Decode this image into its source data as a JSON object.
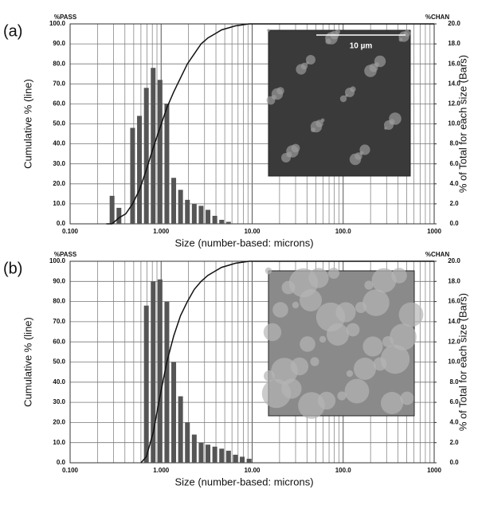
{
  "chart_data": [
    {
      "type": "combo",
      "label": "(a)",
      "ylabel_top": "%PASS",
      "y2label_top": "%CHAN",
      "ylabel": "Cumulative % (line)",
      "y2label": "% of Total for each size (Bars)",
      "xlabel": "Size (number-based: microns)",
      "inset_text": "10 µm",
      "log_x": true,
      "grid": true,
      "xlim": [
        0.1,
        1000
      ],
      "xticks": [
        {
          "value": 0.1,
          "label": "0.100"
        },
        {
          "value": 1,
          "label": "1.000"
        },
        {
          "value": 10,
          "label": "10.00"
        },
        {
          "value": 100,
          "label": "100.0"
        },
        1000
      ],
      "ylim": [
        0,
        100
      ],
      "yticks": [
        {
          "value": 0,
          "label": "0.0"
        },
        {
          "value": 10,
          "label": "10.0"
        },
        {
          "value": 20,
          "label": "20.0"
        },
        {
          "value": 30,
          "label": "30.0"
        },
        {
          "value": 40,
          "label": "40.0"
        },
        {
          "value": 50,
          "label": "50.0"
        },
        {
          "value": 60,
          "label": "60.0"
        },
        {
          "value": 70,
          "label": "70.0"
        },
        {
          "value": 80,
          "label": "80.0"
        },
        {
          "value": 90,
          "label": "90.0"
        },
        {
          "value": 100,
          "label": "100.0"
        }
      ],
      "y2lim": [
        0,
        20
      ],
      "y2ticks": [
        {
          "value": 0,
          "label": "0.0"
        },
        {
          "value": 2,
          "label": "2.0"
        },
        {
          "value": 4,
          "label": "4.0"
        },
        {
          "value": 6,
          "label": "6.0"
        },
        {
          "value": 8,
          "label": "8.0"
        },
        {
          "value": 10,
          "label": "10.0"
        },
        {
          "value": 12,
          "label": "12.0"
        },
        {
          "value": 14,
          "label": "14.0"
        },
        {
          "value": 16,
          "label": "16.0"
        },
        {
          "value": 18,
          "label": "18.0"
        },
        {
          "value": 20,
          "label": "20.0"
        }
      ],
      "series": [
        {
          "type": "bar",
          "axis": "y2",
          "color": "#555555",
          "x": [
            0.289,
            0.344,
            0.409,
            0.486,
            0.578,
            0.688,
            0.818,
            0.972,
            1.156,
            1.375,
            1.635,
            1.944,
            2.312,
            2.75,
            3.27,
            3.889,
            4.625,
            5.5
          ],
          "values": [
            2.8,
            1.6,
            0,
            9.6,
            10.8,
            13.6,
            15.6,
            14.4,
            12.0,
            4.6,
            3.4,
            2.4,
            2.0,
            1.8,
            1.4,
            0.8,
            0.4,
            0.2
          ]
        },
        {
          "type": "line",
          "axis": "y",
          "color": "#111111",
          "x": [
            0.25,
            0.289,
            0.344,
            0.409,
            0.486,
            0.578,
            0.688,
            0.818,
            0.972,
            1.156,
            1.375,
            1.635,
            1.944,
            2.312,
            2.75,
            3.27,
            3.889,
            4.625,
            5.5,
            6.54,
            7.78,
            9.25,
            11,
            1000
          ],
          "values": [
            0,
            0,
            3,
            5,
            10,
            17,
            27,
            38,
            48,
            58,
            66,
            73,
            80,
            85,
            90,
            93,
            95,
            97,
            98,
            99,
            99.5,
            100,
            100,
            100
          ]
        }
      ]
    },
    {
      "type": "combo",
      "label": "(b)",
      "ylabel_top": "%PASS",
      "y2label_top": "%CHAN",
      "ylabel": "Cumulative % (line)",
      "y2label": "% of Total for each size (Bars)",
      "xlabel": "Size (number-based: microns)",
      "log_x": true,
      "grid": true,
      "xlim": [
        0.1,
        1000
      ],
      "xticks": [
        {
          "value": 0.1,
          "label": "0.100"
        },
        {
          "value": 1,
          "label": "1.000"
        },
        {
          "value": 10,
          "label": "10.00"
        },
        {
          "value": 100,
          "label": "100.0"
        },
        1000
      ],
      "ylim": [
        0,
        100
      ],
      "yticks": [
        {
          "value": 0,
          "label": "0.0"
        },
        {
          "value": 10,
          "label": "10.0"
        },
        {
          "value": 20,
          "label": "20.0"
        },
        {
          "value": 30,
          "label": "30.0"
        },
        {
          "value": 40,
          "label": "40.0"
        },
        {
          "value": 50,
          "label": "50.0"
        },
        {
          "value": 60,
          "label": "60.0"
        },
        {
          "value": 70,
          "label": "70.0"
        },
        {
          "value": 80,
          "label": "80.0"
        },
        {
          "value": 90,
          "label": "90.0"
        },
        {
          "value": 100,
          "label": "100.0"
        }
      ],
      "y2lim": [
        0,
        20
      ],
      "y2ticks": [
        {
          "value": 0,
          "label": "0.0"
        },
        {
          "value": 2,
          "label": "2.0"
        },
        {
          "value": 4,
          "label": "4.0"
        },
        {
          "value": 6,
          "label": "6.0"
        },
        {
          "value": 8,
          "label": "8.0"
        },
        {
          "value": 10,
          "label": "10.0"
        },
        {
          "value": 12,
          "label": "12.0"
        },
        {
          "value": 14,
          "label": "14.0"
        },
        {
          "value": 16,
          "label": "16.0"
        },
        {
          "value": 18,
          "label": "18.0"
        },
        {
          "value": 20,
          "label": "20.0"
        }
      ],
      "series": [
        {
          "type": "bar",
          "axis": "y2",
          "color": "#555555",
          "x": [
            0.688,
            0.818,
            0.972,
            1.156,
            1.375,
            1.635,
            1.944,
            2.312,
            2.75,
            3.27,
            3.889,
            4.625,
            5.5,
            6.54,
            7.78,
            9.25
          ],
          "values": [
            15.6,
            18.0,
            18.2,
            16.0,
            10.0,
            6.6,
            4.0,
            2.8,
            2.0,
            1.8,
            1.6,
            1.4,
            1.2,
            0.8,
            0.6,
            0.4
          ]
        },
        {
          "type": "line",
          "axis": "y",
          "color": "#111111",
          "x": [
            0.6,
            0.688,
            0.818,
            0.972,
            1.156,
            1.375,
            1.635,
            1.944,
            2.312,
            2.75,
            3.27,
            3.889,
            4.625,
            5.5,
            6.54,
            7.78,
            9.25,
            11,
            1000
          ],
          "values": [
            0,
            3,
            15,
            33,
            50,
            63,
            73,
            80,
            86,
            90,
            93,
            95,
            97,
            98,
            99,
            99.5,
            100,
            100,
            100
          ]
        }
      ]
    }
  ]
}
